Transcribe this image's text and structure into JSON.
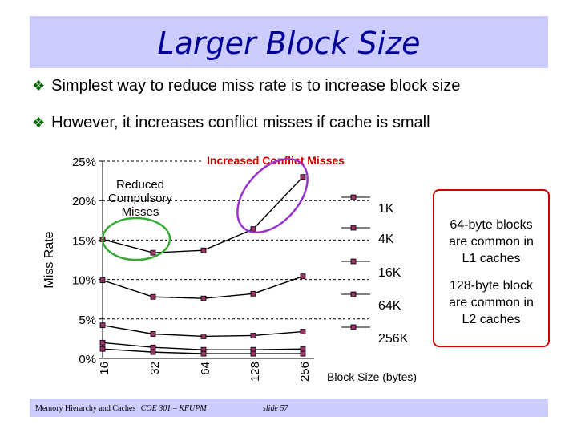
{
  "slide": {
    "title": "Larger Block Size",
    "bullets": [
      "Simplest way to reduce miss rate is to increase block size",
      "However, it increases conflict misses if cache is small"
    ],
    "side_notes": {
      "note1": [
        "64-byte blocks",
        "are common in",
        "L1 caches"
      ],
      "note2": [
        "128-byte block",
        "are common in",
        "L2 caches"
      ]
    },
    "footer": {
      "left": "Memory Hierarchy and Caches",
      "course": "COE 301 – KFUPM",
      "slide": "slide 57"
    }
  },
  "chart_data": {
    "type": "line",
    "categories": [
      "16",
      "32",
      "64",
      "128",
      "256"
    ],
    "ylabel": "Miss Rate",
    "xlabel": "Block Size (bytes)",
    "y_ticks": [
      "0%",
      "5%",
      "10%",
      "15%",
      "20%",
      "25%"
    ],
    "ylim": [
      0,
      25
    ],
    "series": [
      {
        "name": "1K",
        "values": [
          15.1,
          13.4,
          13.7,
          16.4,
          23.0
        ]
      },
      {
        "name": "4K",
        "values": [
          9.9,
          7.8,
          7.6,
          8.2,
          10.4
        ]
      },
      {
        "name": "16K",
        "values": [
          4.2,
          3.1,
          2.8,
          2.9,
          3.4
        ]
      },
      {
        "name": "64K",
        "values": [
          2.0,
          1.4,
          1.1,
          1.1,
          1.2
        ]
      },
      {
        "name": "256K",
        "values": [
          1.2,
          0.8,
          0.6,
          0.6,
          0.6
        ]
      }
    ],
    "annotations": {
      "increased": "Increased Conflict Misses",
      "reduced": [
        "Reduced",
        "Compulsory",
        "Misses"
      ]
    },
    "colors": {
      "line": "#000000",
      "marker_fill": "#993366",
      "grid": "#000000",
      "circle_green": "#33aa33",
      "circle_purple": "#9933cc",
      "increased_text": "#cc0000"
    }
  }
}
